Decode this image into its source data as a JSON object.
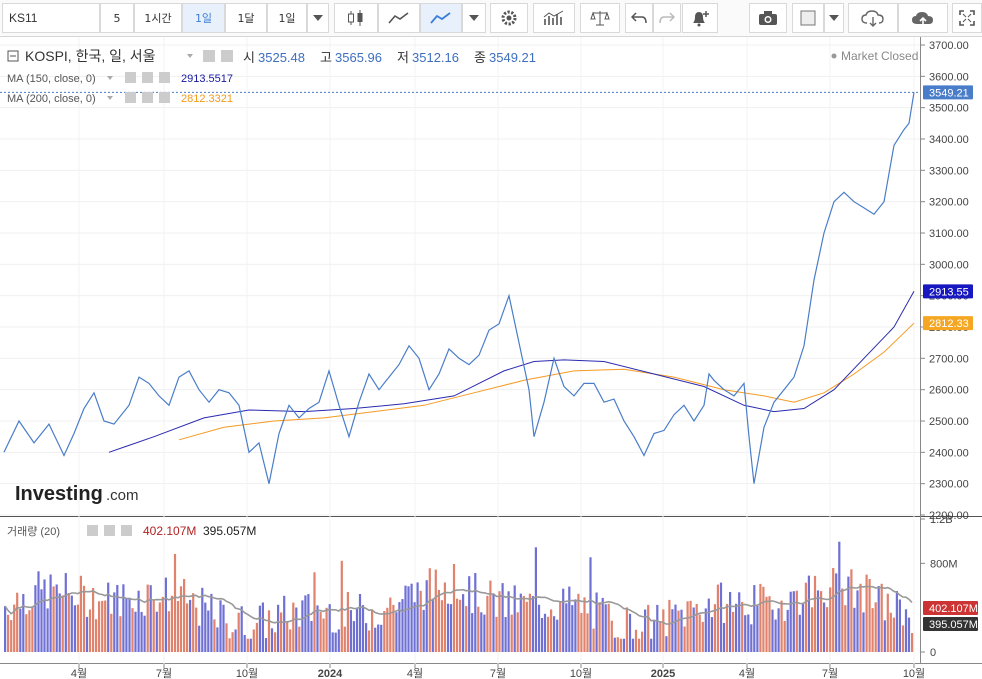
{
  "toolbar": {
    "symbol": "KS11",
    "intervals": [
      "5",
      "1시간",
      "1일",
      "1달",
      "1일"
    ],
    "active_interval": 2
  },
  "legend": {
    "title": "KOSPI, 한국, 일, 서울",
    "o_label": "시",
    "o": "3525.48",
    "h_label": "고",
    "h": "3565.96",
    "l_label": "저",
    "l": "3512.16",
    "c_label": "종",
    "c": "3549.21",
    "ma150_label": "MA (150, close, 0)",
    "ma150_value": "2913.5517",
    "ma200_label": "MA (200, close, 0)",
    "ma200_value": "2812.3321",
    "volume_label": "거래량 (20)",
    "volume_value": "402.107M",
    "volume_ma_value": "395.057M",
    "status": "Market Closed",
    "watermark": "Investing",
    "watermark_suffix": ".com"
  },
  "colors": {
    "price": "#4a7dc9",
    "ma150": "#2a2ab0",
    "ma200": "#f59a23",
    "vol_up": "#e0826c",
    "vol_down": "#6f70d4",
    "vol_ma": "#999999",
    "last_price_tag": "#4a7dc9",
    "ma150_tag": "#1818c0",
    "ma200_tag": "#f5a623",
    "vol_tag": "#cc3333",
    "volma_tag": "#333333"
  },
  "chart_data": {
    "type": "line",
    "price_axis_ticks": [
      "3700.00",
      "3600.00",
      "3500.00",
      "3400.00",
      "3300.00",
      "3200.00",
      "3100.00",
      "3000.00",
      "2900.00",
      "2800.00",
      "2700.00",
      "2600.00",
      "2500.00",
      "2400.00",
      "2300.00",
      "2200.00"
    ],
    "ylim": [
      2200,
      3700
    ],
    "volume_axis_ticks": [
      "1.2B",
      "800M",
      "400M",
      "0"
    ],
    "volume_ylim": [
      0,
      1200
    ],
    "x_axis_labels": [
      "4월",
      "7월",
      "10월",
      "2024",
      "4월",
      "7월",
      "10월",
      "2025",
      "4월",
      "7월",
      "10월"
    ],
    "x_range": [
      0,
      910
    ],
    "x_ticks": [
      75,
      160,
      243,
      326,
      411,
      494,
      577,
      659,
      743,
      826,
      910
    ],
    "last_price": "3549.21",
    "ma150_last": "2913.55",
    "ma200_last": "2812.33",
    "volume_last": "402.107M",
    "volume_ma_last": "395.057M",
    "series": [
      {
        "name": "KOSPI",
        "points": [
          [
            0,
            2400
          ],
          [
            15,
            2500
          ],
          [
            30,
            2430
          ],
          [
            45,
            2490
          ],
          [
            60,
            2390
          ],
          [
            70,
            2460
          ],
          [
            80,
            2540
          ],
          [
            90,
            2590
          ],
          [
            100,
            2500
          ],
          [
            110,
            2490
          ],
          [
            125,
            2550
          ],
          [
            135,
            2640
          ],
          [
            145,
            2620
          ],
          [
            155,
            2580
          ],
          [
            165,
            2550
          ],
          [
            175,
            2640
          ],
          [
            185,
            2660
          ],
          [
            195,
            2600
          ],
          [
            205,
            2560
          ],
          [
            215,
            2600
          ],
          [
            225,
            2590
          ],
          [
            235,
            2550
          ],
          [
            245,
            2400
          ],
          [
            255,
            2430
          ],
          [
            265,
            2300
          ],
          [
            275,
            2460
          ],
          [
            285,
            2550
          ],
          [
            295,
            2510
          ],
          [
            305,
            2540
          ],
          [
            315,
            2560
          ],
          [
            325,
            2660
          ],
          [
            335,
            2550
          ],
          [
            345,
            2450
          ],
          [
            355,
            2560
          ],
          [
            365,
            2650
          ],
          [
            375,
            2600
          ],
          [
            385,
            2640
          ],
          [
            395,
            2680
          ],
          [
            405,
            2740
          ],
          [
            415,
            2700
          ],
          [
            425,
            2600
          ],
          [
            435,
            2650
          ],
          [
            445,
            2730
          ],
          [
            455,
            2700
          ],
          [
            465,
            2680
          ],
          [
            475,
            2710
          ],
          [
            485,
            2790
          ],
          [
            495,
            2810
          ],
          [
            505,
            2900
          ],
          [
            515,
            2750
          ],
          [
            525,
            2600
          ],
          [
            530,
            2450
          ],
          [
            540,
            2560
          ],
          [
            550,
            2700
          ],
          [
            560,
            2610
          ],
          [
            570,
            2580
          ],
          [
            580,
            2620
          ],
          [
            590,
            2620
          ],
          [
            600,
            2560
          ],
          [
            610,
            2570
          ],
          [
            620,
            2500
          ],
          [
            630,
            2450
          ],
          [
            640,
            2390
          ],
          [
            650,
            2460
          ],
          [
            660,
            2470
          ],
          [
            670,
            2520
          ],
          [
            680,
            2550
          ],
          [
            690,
            2500
          ],
          [
            700,
            2550
          ],
          [
            705,
            2650
          ],
          [
            710,
            2630
          ],
          [
            720,
            2600
          ],
          [
            730,
            2580
          ],
          [
            740,
            2620
          ],
          [
            745,
            2450
          ],
          [
            750,
            2300
          ],
          [
            760,
            2480
          ],
          [
            770,
            2560
          ],
          [
            780,
            2600
          ],
          [
            790,
            2640
          ],
          [
            800,
            2740
          ],
          [
            810,
            2950
          ],
          [
            820,
            3100
          ],
          [
            830,
            3200
          ],
          [
            840,
            3230
          ],
          [
            850,
            3200
          ],
          [
            860,
            3180
          ],
          [
            870,
            3160
          ],
          [
            880,
            3200
          ],
          [
            890,
            3380
          ],
          [
            900,
            3430
          ],
          [
            905,
            3450
          ],
          [
            910,
            3549
          ]
        ]
      },
      {
        "name": "MA (150, close, 0)",
        "points": [
          [
            105,
            2400
          ],
          [
            150,
            2450
          ],
          [
            200,
            2510
          ],
          [
            245,
            2535
          ],
          [
            300,
            2530
          ],
          [
            350,
            2540
          ],
          [
            400,
            2555
          ],
          [
            450,
            2580
          ],
          [
            500,
            2660
          ],
          [
            530,
            2690
          ],
          [
            560,
            2695
          ],
          [
            600,
            2690
          ],
          [
            650,
            2650
          ],
          [
            700,
            2610
          ],
          [
            740,
            2550
          ],
          [
            770,
            2530
          ],
          [
            800,
            2540
          ],
          [
            830,
            2600
          ],
          [
            860,
            2700
          ],
          [
            890,
            2800
          ],
          [
            910,
            2914
          ]
        ]
      },
      {
        "name": "MA (200, close, 0)",
        "points": [
          [
            175,
            2440
          ],
          [
            220,
            2480
          ],
          [
            270,
            2500
          ],
          [
            320,
            2510
          ],
          [
            370,
            2530
          ],
          [
            420,
            2550
          ],
          [
            470,
            2590
          ],
          [
            520,
            2630
          ],
          [
            570,
            2660
          ],
          [
            620,
            2665
          ],
          [
            670,
            2640
          ],
          [
            720,
            2600
          ],
          [
            760,
            2580
          ],
          [
            790,
            2560
          ],
          [
            820,
            2590
          ],
          [
            850,
            2650
          ],
          [
            880,
            2720
          ],
          [
            910,
            2812
          ]
        ]
      }
    ]
  }
}
